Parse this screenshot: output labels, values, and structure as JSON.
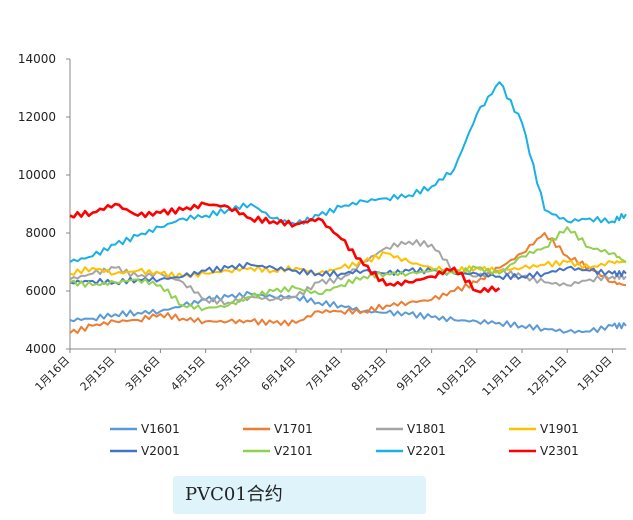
{
  "chart_data": {
    "type": "line",
    "title": "",
    "xlabel": "",
    "ylabel": "",
    "ylim": [
      4000,
      14000
    ],
    "yticks": [
      4000,
      6000,
      8000,
      10000,
      12000,
      14000
    ],
    "x_tick_labels": [
      "1月16日",
      "2月15日",
      "3月16日",
      "4月15日",
      "5月15日",
      "6月14日",
      "7月14日",
      "8月13日",
      "9月12日",
      "10月12日",
      "11月11日",
      "12月11日",
      "1月10日"
    ],
    "grid": false,
    "legend_position": "bottom",
    "x": [
      0,
      0.5,
      1,
      1.5,
      2,
      2.5,
      3,
      3.5,
      4,
      4.5,
      5,
      5.5,
      6,
      6.5,
      7,
      7.5,
      8,
      8.5,
      9,
      9.5,
      10,
      10.5,
      11,
      11.5,
      12,
      12.3
    ],
    "series": [
      {
        "name": "V1601",
        "color": "#5b9bd5",
        "values": [
          5000,
          5050,
          5200,
          5250,
          5300,
          5500,
          5700,
          5800,
          5900,
          5800,
          5800,
          5600,
          5500,
          5300,
          5250,
          5200,
          5100,
          5000,
          4950,
          4900,
          4800,
          4700,
          4600,
          4600,
          4800,
          4800
        ]
      },
      {
        "name": "V1701",
        "color": "#ed7d31",
        "values": [
          4550,
          4800,
          4950,
          5000,
          5200,
          5050,
          4950,
          4950,
          4950,
          4900,
          4900,
          5300,
          5300,
          5300,
          5500,
          5600,
          5700,
          6000,
          6300,
          6800,
          7300,
          8000,
          7200,
          6800,
          6300,
          6200
        ]
      },
      {
        "name": "V1801",
        "color": "#a5a5a5",
        "values": [
          6400,
          6600,
          6800,
          6500,
          6600,
          6300,
          5700,
          5600,
          5800,
          5700,
          5800,
          6300,
          6400,
          7000,
          7500,
          7700,
          7600,
          6700,
          6500,
          6700,
          6500,
          6300,
          6200,
          6400,
          6500,
          6500
        ]
      },
      {
        "name": "V1901",
        "color": "#ffc000",
        "values": [
          6600,
          6800,
          6600,
          6700,
          6600,
          6500,
          6600,
          6700,
          6800,
          6700,
          6800,
          6600,
          6800,
          7000,
          7300,
          7000,
          6800,
          6700,
          6800,
          6700,
          6800,
          6900,
          7000,
          6800,
          7000,
          7000
        ]
      },
      {
        "name": "V2001",
        "color": "#4472c4",
        "values": [
          6300,
          6350,
          6300,
          6400,
          6400,
          6500,
          6700,
          6800,
          6900,
          6800,
          6700,
          6600,
          6600,
          6700,
          6600,
          6700,
          6700,
          6600,
          6600,
          6500,
          6500,
          6600,
          6800,
          6700,
          6600,
          6600
        ]
      },
      {
        "name": "V2101",
        "color": "#92d050",
        "values": [
          6300,
          6200,
          6300,
          6400,
          6200,
          5500,
          5400,
          5500,
          5800,
          6000,
          6100,
          5900,
          6200,
          6500,
          6600,
          6600,
          6700,
          6600,
          6800,
          6600,
          7200,
          7500,
          8200,
          7500,
          7300,
          7000
        ]
      },
      {
        "name": "V2201",
        "color": "#1ab0e6",
        "values": [
          7000,
          7200,
          7600,
          7900,
          8200,
          8500,
          8600,
          8800,
          9000,
          8500,
          8300,
          8600,
          8900,
          9100,
          9200,
          9300,
          9600,
          10200,
          12100,
          13200,
          11800,
          8800,
          8400,
          8500,
          8400,
          8650
        ]
      },
      {
        "name": "V2301",
        "color": "#ff0000",
        "values": [
          8600,
          8700,
          9000,
          8600,
          8700,
          8800,
          9000,
          8900,
          8500,
          8400,
          8300,
          8500,
          7800,
          6900,
          6200,
          6300,
          6500,
          6800,
          6000,
          6100,
          null,
          null,
          null,
          null,
          null,
          null
        ]
      }
    ]
  },
  "caption": "PVC01合约"
}
